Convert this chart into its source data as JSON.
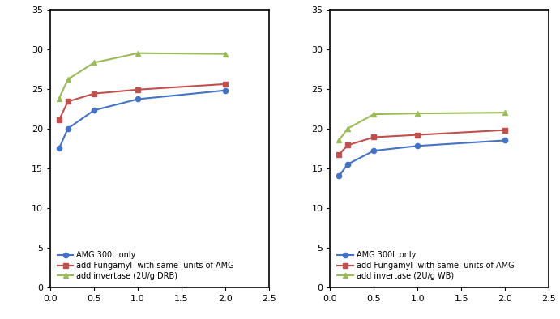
{
  "x": [
    0.1,
    0.2,
    0.5,
    1.0,
    2.0
  ],
  "left": {
    "amg": [
      17.5,
      20.0,
      22.3,
      23.7,
      24.8
    ],
    "fungamyl": [
      21.1,
      23.4,
      24.4,
      24.9,
      25.6
    ],
    "invertase": [
      23.8,
      26.2,
      28.3,
      29.5,
      29.4
    ],
    "legend3": "add invertase (2U/g DRB)"
  },
  "right": {
    "amg": [
      14.0,
      15.5,
      17.2,
      17.8,
      18.5
    ],
    "fungamyl": [
      16.7,
      17.9,
      18.9,
      19.2,
      19.8
    ],
    "invertase": [
      18.5,
      20.0,
      21.8,
      21.9,
      22.0
    ],
    "legend3": "add invertase (2U/g WB)"
  },
  "legend1": "AMG 300L only",
  "legend2": "add Fungamyl  with same  units of AMG",
  "color_amg": "#4472C4",
  "color_fungamyl": "#C0504D",
  "color_invertase": "#9BBB59",
  "xlim": [
    0.0,
    2.5
  ],
  "ylim": [
    0,
    35
  ],
  "yticks": [
    0,
    5,
    10,
    15,
    20,
    25,
    30,
    35
  ],
  "xticks": [
    0.0,
    0.5,
    1.0,
    1.5,
    2.0,
    2.5
  ],
  "marker_amg": "o",
  "marker_fungamyl": "s",
  "marker_invertase": "^",
  "linewidth": 1.5,
  "markersize": 4.5,
  "legend_fontsize": 7.0,
  "tick_fontsize": 8,
  "bg_color": "#FFFFFF"
}
